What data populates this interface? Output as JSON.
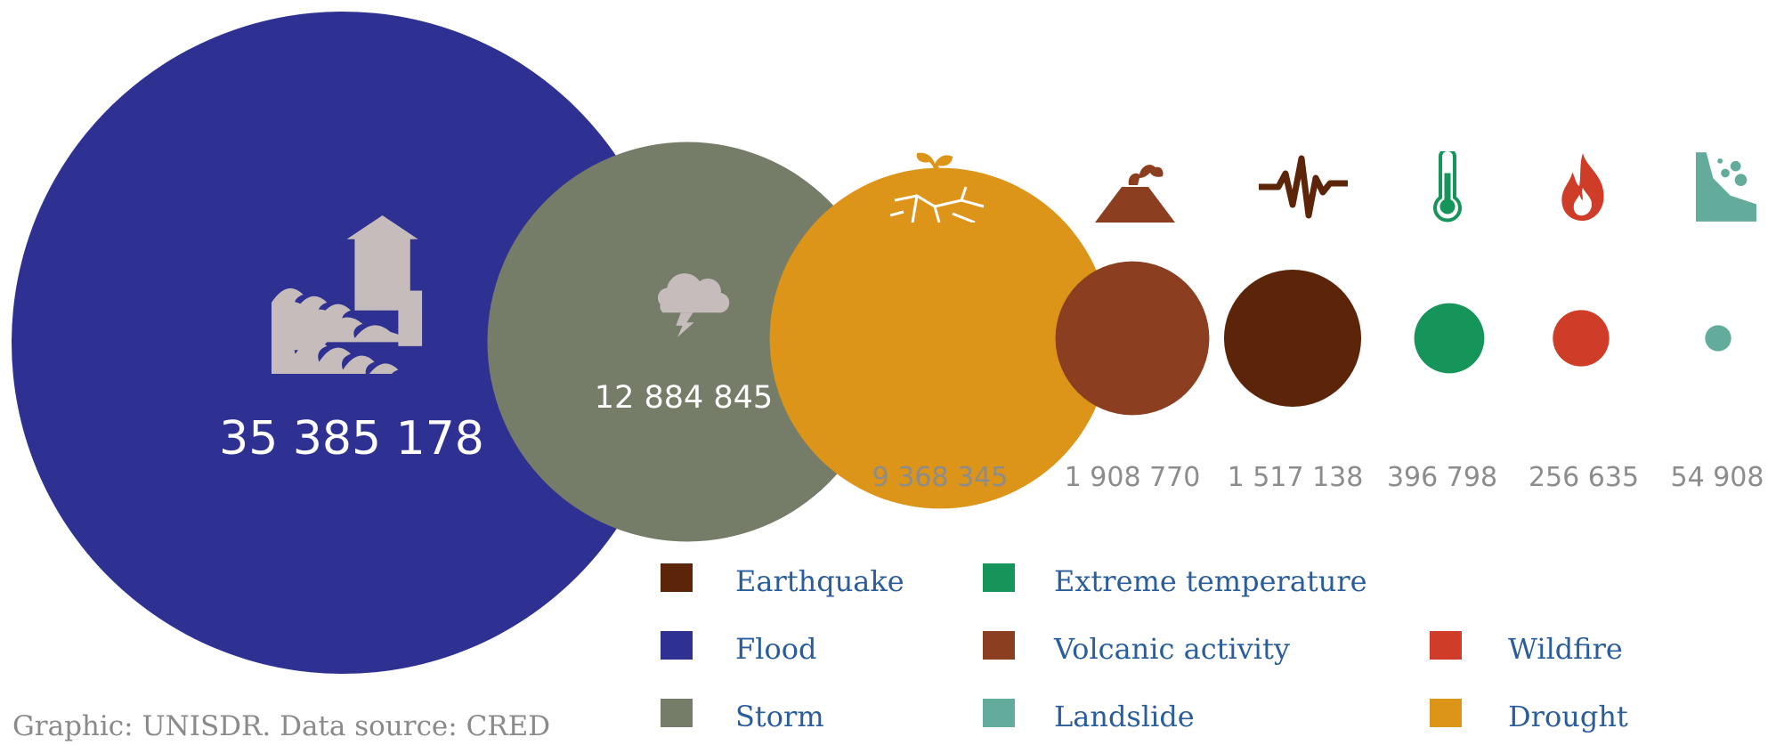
{
  "chart_data": {
    "type": "bubble",
    "series": [
      {
        "name": "Flood",
        "value": 35385178,
        "value_text": "35 385 178",
        "color": "#2e3192",
        "icon": "flood-house-waves-icon"
      },
      {
        "name": "Storm",
        "value": 12884845,
        "value_text": "12 884 845",
        "color": "#757d68",
        "icon": "storm-cloud-lightning-icon"
      },
      {
        "name": "Drought",
        "value": 9368345,
        "value_text": "9 368 345",
        "color": "#dc9419",
        "icon": "drought-cracked-earth-icon"
      },
      {
        "name": "Volcanic activity",
        "value": 1908770,
        "value_text": "1 908 770",
        "color": "#8b3e20",
        "icon": "volcano-icon"
      },
      {
        "name": "Earthquake",
        "value": 1517138,
        "value_text": "1 517 138",
        "color": "#5c2408",
        "icon": "seismograph-icon"
      },
      {
        "name": "Extreme temperature",
        "value": 396798,
        "value_text": "396 798",
        "color": "#16955a",
        "icon": "thermometer-icon"
      },
      {
        "name": "Wildfire",
        "value": 256635,
        "value_text": "256 635",
        "color": "#cf3c27",
        "icon": "fire-icon"
      },
      {
        "name": "Landslide",
        "value": 54908,
        "value_text": "54 908",
        "color": "#63ab9b",
        "icon": "landslide-icon"
      }
    ],
    "legend": {
      "placement": "bottom-right",
      "columns": [
        [
          "Earthquake",
          "Flood",
          "Storm"
        ],
        [
          "Extreme temperature",
          "Volcanic activity",
          "Landslide"
        ],
        [
          "Wildfire",
          "Drought"
        ]
      ]
    },
    "source": "Graphic: UNISDR. Data source: CRED"
  },
  "colors": {
    "icon_light": "#c7bcbc",
    "value_gray": "#8c8c8c",
    "legend_text": "#2a5d9c",
    "source_gray": "#8a8a8a"
  }
}
